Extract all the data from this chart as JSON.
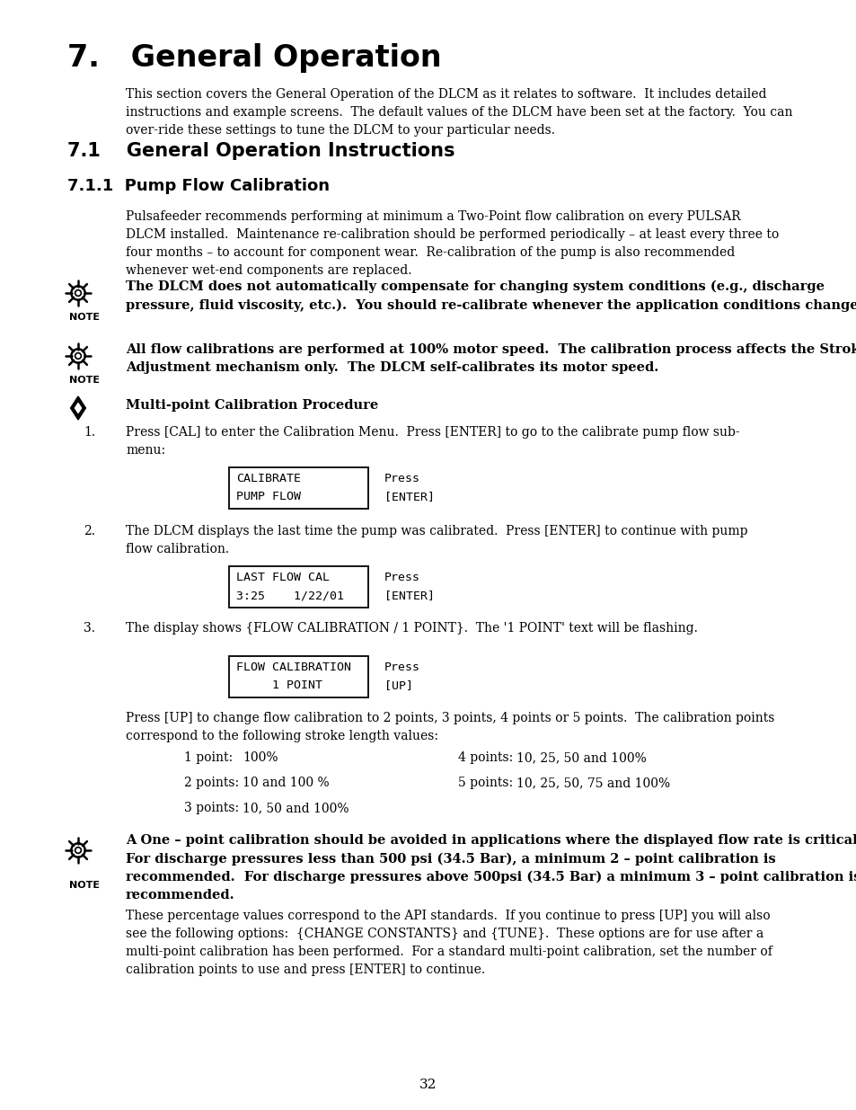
{
  "title": "7.   General Operation",
  "section_title": "7.1    General Operation Instructions",
  "subsection_title": "7.1.1  Pump Flow Calibration",
  "intro_text": "This section covers the General Operation of the DLCM as it relates to software.  It includes detailed\ninstructions and example screens.  The default values of the DLCM have been set at the factory.  You can\nover-ride these settings to tune the DLCM to your particular needs.",
  "pump_flow_text": "Pulsafeeder recommends performing at minimum a Two-Point flow calibration on every PULSAR\nDLCM installed.  Maintenance re-calibration should be performed periodically – at least every three to\nfour months – to account for component wear.  Re-calibration of the pump is also recommended\nwhenever wet-end components are replaced.",
  "note1_text": "The DLCM does not automatically compensate for changing system conditions (e.g., discharge\npressure, fluid viscosity, etc.).  You should re-calibrate whenever the application conditions change.",
  "note2_text": "All flow calibrations are performed at 100% motor speed.  The calibration process affects the Stroke\nAdjustment mechanism only.  The DLCM self-calibrates its motor speed.",
  "multipoint_title": "Multi-point Calibration Procedure",
  "step1_text": "Press [CAL] to enter the Calibration Menu.  Press [ENTER] to go to the calibrate pump flow sub-\nmenu:",
  "box1_line1": "CALIBRATE",
  "box1_line2": "PUMP FLOW",
  "box1_press": "Press",
  "box1_key": "[ENTER]",
  "step2_text": "The DLCM displays the last time the pump was calibrated.  Press [ENTER] to continue with pump\nflow calibration.",
  "box2_line1": "LAST FLOW CAL",
  "box2_line2": "3:25    1/22/01",
  "box2_press": "Press",
  "box2_key": "[ENTER]",
  "step3_text": "The display shows {FLOW CALIBRATION / 1 POINT}.  The '1 POINT' text will be flashing.",
  "box3_line1": "FLOW CALIBRATION",
  "box3_line2": "     1 POINT",
  "box3_press": "Press",
  "box3_key": "[UP]",
  "press_up_text": "Press [UP] to change flow calibration to 2 points, 3 points, 4 points or 5 points.  The calibration points\ncorrespond to the following stroke length values:",
  "cal_points": [
    {
      "label": "1 point:",
      "value": "100%"
    },
    {
      "label": "2 points:",
      "value": "10 and 100 %"
    },
    {
      "label": "3 points:",
      "value": "10, 50 and 100%"
    },
    {
      "label": "4 points:",
      "value": "10, 25, 50 and 100%"
    },
    {
      "label": "5 points:",
      "value": "10, 25, 50, 75 and 100%"
    }
  ],
  "note3_text": "A One – point calibration should be avoided in applications where the displayed flow rate is critical.\nFor discharge pressures less than 500 psi (34.5 Bar), a minimum 2 – point calibration is\nrecommended.  For discharge pressures above 500psi (34.5 Bar) a minimum 3 – point calibration is\nrecommended.",
  "final_text": "These percentage values correspond to the API standards.  If you continue to press [UP] you will also\nsee the following options:  {CHANGE CONSTANTS} and {TUNE}.  These options are for use after a\nmulti-point calibration has been performed.  For a standard multi-point calibration, set the number of\ncalibration points to use and press [ENTER] to continue.",
  "page_number": "32",
  "bg_color": "#ffffff",
  "text_color": "#000000"
}
